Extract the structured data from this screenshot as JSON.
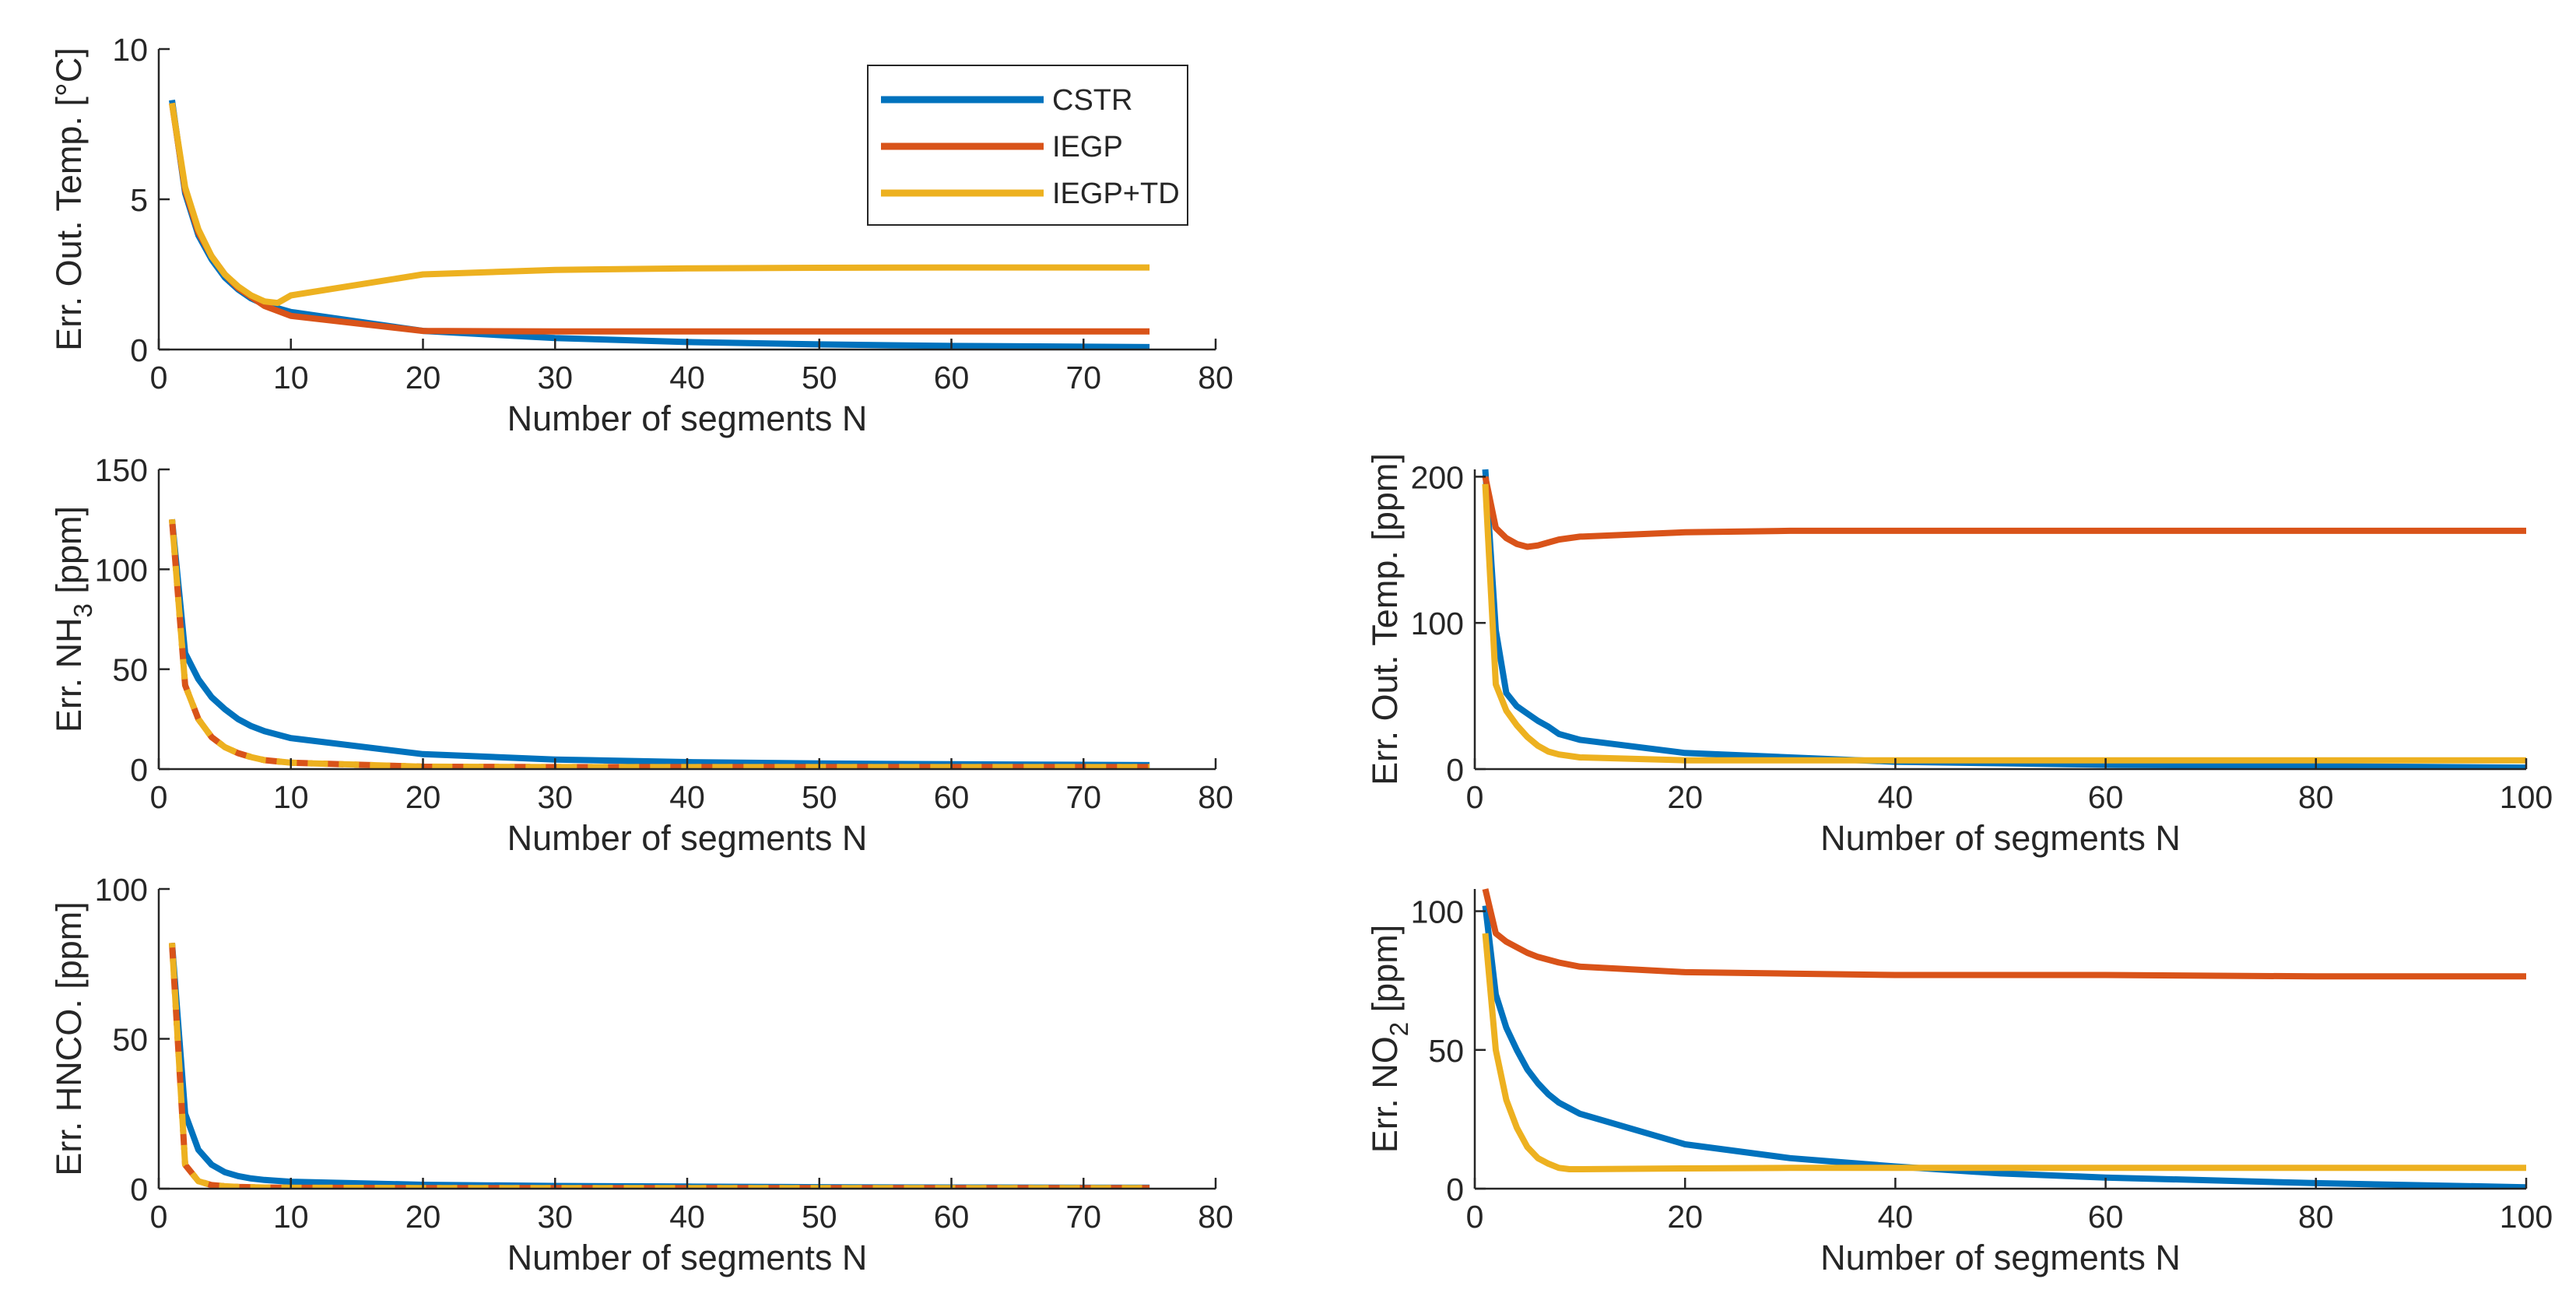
{
  "legend": {
    "entries": [
      {
        "name": "CSTR",
        "color": "#0072BD"
      },
      {
        "name": "IEGP",
        "color": "#D95319"
      },
      {
        "name": "IEGP+TD",
        "color": "#EDB120"
      }
    ],
    "placement": "inside top-right of first panel"
  },
  "chart_data": [
    {
      "id": "p1",
      "type": "line",
      "xlabel": "Number of segments N",
      "ylabel": "Err. Out. Temp. [°C]",
      "xlim": [
        0,
        80
      ],
      "ylim": [
        0,
        10
      ],
      "xticks": [
        0,
        10,
        20,
        30,
        40,
        50,
        60,
        70,
        80
      ],
      "yticks": [
        0,
        5,
        10
      ],
      "grid": false,
      "series": [
        {
          "name": "CSTR",
          "color": "#0072BD",
          "dash": "solid",
          "x": [
            1,
            2,
            3,
            4,
            5,
            6,
            7,
            8,
            10,
            20,
            30,
            40,
            50,
            60,
            75
          ],
          "y": [
            8.3,
            5.2,
            3.8,
            3.0,
            2.4,
            2.0,
            1.7,
            1.5,
            1.25,
            0.62,
            0.38,
            0.25,
            0.17,
            0.12,
            0.08
          ]
        },
        {
          "name": "IEGP",
          "color": "#D95319",
          "dash": "solid",
          "x": [
            1,
            2,
            3,
            4,
            5,
            6,
            7,
            8,
            10,
            20,
            30,
            40,
            50,
            60,
            75
          ],
          "y": [
            8.2,
            5.3,
            3.9,
            3.1,
            2.5,
            2.05,
            1.75,
            1.45,
            1.12,
            0.62,
            0.6,
            0.6,
            0.6,
            0.6,
            0.6
          ]
        },
        {
          "name": "IEGP+TD",
          "color": "#EDB120",
          "dash": "solid",
          "x": [
            1,
            2,
            3,
            4,
            5,
            6,
            7,
            8,
            9,
            10,
            20,
            30,
            40,
            50,
            60,
            75
          ],
          "y": [
            8.2,
            5.4,
            4.0,
            3.1,
            2.5,
            2.1,
            1.8,
            1.6,
            1.55,
            1.8,
            2.5,
            2.65,
            2.7,
            2.72,
            2.73,
            2.73
          ]
        }
      ]
    },
    {
      "id": "p2",
      "type": "line",
      "xlabel": "Number of segments N",
      "ylabel": "Err. NH3 [ppm]",
      "ylabel_main": "Err. NH",
      "ylabel_sub": "3",
      "ylabel_tail": " [ppm]",
      "xlim": [
        0,
        80
      ],
      "ylim": [
        0,
        150
      ],
      "xticks": [
        0,
        10,
        20,
        30,
        40,
        50,
        60,
        70,
        80
      ],
      "yticks": [
        0,
        50,
        100,
        150
      ],
      "grid": false,
      "series": [
        {
          "name": "CSTR",
          "color": "#0072BD",
          "dash": "solid",
          "x": [
            1,
            2,
            3,
            4,
            5,
            6,
            7,
            8,
            10,
            20,
            30,
            40,
            50,
            60,
            75
          ],
          "y": [
            125,
            58,
            45,
            36,
            30,
            25,
            21.5,
            19,
            15.5,
            7.5,
            4.8,
            3.5,
            2.8,
            2.4,
            2.0
          ]
        },
        {
          "name": "IEGP",
          "color": "#D95319",
          "dash": "dash",
          "x": [
            1,
            2,
            3,
            4,
            5,
            6,
            7,
            8,
            10,
            20,
            30,
            40,
            50,
            60,
            75
          ],
          "y": [
            125,
            42,
            25,
            16,
            11,
            8,
            6,
            4.5,
            3.2,
            1.2,
            1.0,
            1.0,
            1.0,
            1.0,
            1.0
          ]
        },
        {
          "name": "IEGP+TD",
          "color": "#EDB120",
          "dash": "dash-offset",
          "x": [
            1,
            2,
            3,
            4,
            5,
            6,
            7,
            8,
            10,
            20,
            30,
            40,
            50,
            60,
            75
          ],
          "y": [
            125,
            42,
            25,
            16,
            11,
            8,
            6,
            4.5,
            3.2,
            1.2,
            1.0,
            1.0,
            1.0,
            1.0,
            1.0
          ]
        }
      ]
    },
    {
      "id": "p3",
      "type": "line",
      "xlabel": "Number of segments N",
      "ylabel": "Err. HNCO. [ppm]",
      "xlim": [
        0,
        80
      ],
      "ylim": [
        0,
        100
      ],
      "xticks": [
        0,
        10,
        20,
        30,
        40,
        50,
        60,
        70,
        80
      ],
      "yticks": [
        0,
        50,
        100
      ],
      "grid": false,
      "series": [
        {
          "name": "CSTR",
          "color": "#0072BD",
          "dash": "solid",
          "x": [
            1,
            2,
            3,
            4,
            5,
            6,
            7,
            8,
            10,
            20,
            30,
            40,
            50,
            60,
            75
          ],
          "y": [
            82,
            25,
            13,
            8,
            5.5,
            4.2,
            3.4,
            2.9,
            2.3,
            1.3,
            0.9,
            0.7,
            0.5,
            0.4,
            0.3
          ]
        },
        {
          "name": "IEGP",
          "color": "#D95319",
          "dash": "dash",
          "x": [
            1,
            2,
            3,
            4,
            5,
            6,
            8,
            10,
            20,
            30,
            40,
            50,
            60,
            75
          ],
          "y": [
            82,
            8,
            2.5,
            1.2,
            0.8,
            0.6,
            0.4,
            0.3,
            0.2,
            0.2,
            0.2,
            0.2,
            0.2,
            0.2
          ]
        },
        {
          "name": "IEGP+TD",
          "color": "#EDB120",
          "dash": "dash-offset",
          "x": [
            1,
            2,
            3,
            4,
            5,
            6,
            8,
            10,
            20,
            30,
            40,
            50,
            60,
            75
          ],
          "y": [
            82,
            8,
            2.5,
            1.2,
            0.8,
            0.6,
            0.4,
            0.3,
            0.2,
            0.2,
            0.2,
            0.2,
            0.2,
            0.2
          ]
        }
      ]
    },
    {
      "id": "p4",
      "type": "line",
      "xlabel": "Number of segments N",
      "ylabel": "Err. Out. Temp. [ppm]",
      "xlim": [
        0,
        100
      ],
      "ylim": [
        0,
        205
      ],
      "xticks": [
        0,
        20,
        40,
        60,
        80,
        100
      ],
      "yticks": [
        0,
        100,
        200
      ],
      "grid": false,
      "series": [
        {
          "name": "CSTR",
          "color": "#0072BD",
          "dash": "solid",
          "x": [
            1,
            2,
            3,
            4,
            5,
            6,
            7,
            8,
            10,
            20,
            30,
            40,
            50,
            60,
            80,
            100
          ],
          "y": [
            205,
            95,
            52,
            43,
            38,
            33,
            29,
            24,
            20,
            11,
            8,
            5,
            4,
            3,
            2,
            1
          ]
        },
        {
          "name": "IEGP",
          "color": "#D95319",
          "dash": "solid",
          "x": [
            1,
            2,
            3,
            4,
            5,
            6,
            7,
            8,
            10,
            20,
            30,
            40,
            50,
            60,
            80,
            100
          ],
          "y": [
            200,
            165,
            158,
            154,
            152,
            153,
            155,
            157,
            159,
            162,
            163,
            163,
            163,
            163,
            163,
            163
          ]
        },
        {
          "name": "IEGP+TD",
          "color": "#EDB120",
          "dash": "solid",
          "x": [
            1,
            2,
            3,
            4,
            5,
            6,
            7,
            8,
            10,
            20,
            30,
            40,
            50,
            60,
            80,
            100
          ],
          "y": [
            195,
            58,
            40,
            30,
            22,
            16,
            12,
            10,
            8,
            6,
            6,
            6,
            6,
            6,
            6,
            6
          ]
        }
      ]
    },
    {
      "id": "p5",
      "type": "line",
      "xlabel": "Number of segments N",
      "ylabel": "Err. NO2 [ppm]",
      "ylabel_main": "Err. NO",
      "ylabel_sub": "2",
      "ylabel_tail": " [ppm]",
      "xlim": [
        0,
        100
      ],
      "ylim": [
        0,
        108
      ],
      "xticks": [
        0,
        20,
        40,
        60,
        80,
        100
      ],
      "yticks": [
        0,
        50,
        100
      ],
      "grid": false,
      "series": [
        {
          "name": "CSTR",
          "color": "#0072BD",
          "dash": "solid",
          "x": [
            1,
            2,
            3,
            4,
            5,
            6,
            7,
            8,
            10,
            20,
            30,
            40,
            50,
            60,
            80,
            100
          ],
          "y": [
            102,
            70,
            58,
            50,
            43,
            38,
            34,
            31,
            27,
            16,
            11,
            8,
            5.5,
            4,
            2,
            0.5
          ]
        },
        {
          "name": "IEGP",
          "color": "#D95319",
          "dash": "solid",
          "x": [
            1,
            2,
            3,
            4,
            5,
            6,
            7,
            8,
            10,
            20,
            30,
            40,
            50,
            60,
            80,
            100
          ],
          "y": [
            108,
            92,
            89,
            87,
            85,
            83.5,
            82.5,
            81.5,
            80,
            78,
            77.5,
            77,
            77,
            77,
            76.5,
            76.5
          ]
        },
        {
          "name": "IEGP+TD",
          "color": "#EDB120",
          "dash": "solid",
          "x": [
            1,
            2,
            3,
            4,
            5,
            6,
            7,
            8,
            9,
            10,
            20,
            30,
            40,
            50,
            60,
            80,
            100
          ],
          "y": [
            92,
            50,
            32,
            22,
            15,
            11,
            9,
            7.5,
            7,
            7,
            7.3,
            7.5,
            7.5,
            7.5,
            7.5,
            7.5,
            7.5
          ]
        }
      ]
    }
  ]
}
